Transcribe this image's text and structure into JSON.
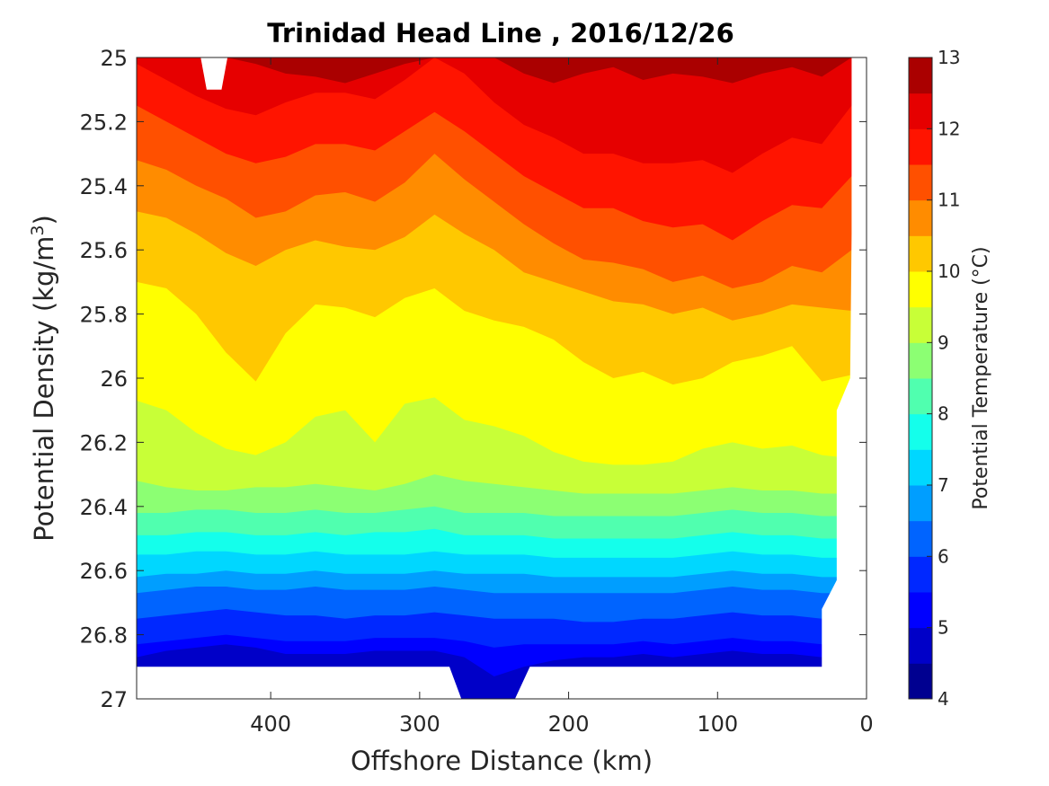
{
  "chart_data": {
    "type": "filled-contour",
    "title": "Trinidad Head Line , 2016/12/26",
    "xlabel": "Offshore Distance (km)",
    "ylabel_main": "Potential Density (kg/m",
    "ylabel_sup": "3",
    "ylabel_end": ")",
    "xlim": [
      490,
      0
    ],
    "x_reversed": true,
    "ylim": [
      25,
      27
    ],
    "y_reversed": true,
    "xticks": [
      400,
      300,
      200,
      100,
      0
    ],
    "xtick_labels": [
      "400",
      "300",
      "200",
      "100",
      "0"
    ],
    "yticks": [
      25,
      25.2,
      25.4,
      25.6,
      25.8,
      26,
      26.2,
      26.4,
      26.6,
      26.8,
      27
    ],
    "ytick_labels": [
      "25",
      "25.2",
      "25.4",
      "25.6",
      "25.8",
      "26",
      "26.2",
      "26.4",
      "26.6",
      "26.8",
      "27"
    ],
    "colorbar": {
      "label": "Potential Temperature (°C)",
      "range": [
        4,
        13
      ],
      "step": 0.5,
      "tick_values": [
        4,
        5,
        6,
        7,
        8,
        9,
        10,
        11,
        12,
        13
      ],
      "tick_labels": [
        "4",
        "5",
        "6",
        "7",
        "8",
        "9",
        "10",
        "11",
        "12",
        "13"
      ],
      "level_colors": [
        "#000090",
        "#0000c8",
        "#0000ff",
        "#0028ff",
        "#0064ff",
        "#009eff",
        "#00d7ff",
        "#14ffeb",
        "#50ffaf",
        "#8cff73",
        "#c8ff37",
        "#ffff00",
        "#ffc800",
        "#ff8c00",
        "#ff5000",
        "#ff1400",
        "#e60000",
        "#aa0000"
      ]
    },
    "stations_x": [
      490,
      470,
      450,
      430,
      410,
      390,
      370,
      350,
      330,
      310,
      290,
      270,
      250,
      230,
      210,
      190,
      170,
      150,
      130,
      110,
      90,
      70,
      50,
      30,
      10
    ],
    "isotherms": [
      {
        "level": 5.0,
        "sigma": [
          26.87,
          26.85,
          26.84,
          26.83,
          26.84,
          26.86,
          26.86,
          26.86,
          26.85,
          26.85,
          26.85,
          26.87,
          26.93,
          26.9,
          26.88,
          26.87,
          26.87,
          26.86,
          26.87,
          26.86,
          26.85,
          26.86,
          26.86,
          26.87,
          26.87
        ]
      },
      {
        "level": 5.5,
        "sigma": [
          26.83,
          26.82,
          26.81,
          26.8,
          26.81,
          26.82,
          26.82,
          26.82,
          26.81,
          26.81,
          26.81,
          26.82,
          26.84,
          26.83,
          26.83,
          26.83,
          26.83,
          26.82,
          26.83,
          26.82,
          26.81,
          26.82,
          26.82,
          26.83,
          26.83
        ]
      },
      {
        "level": 6.0,
        "sigma": [
          26.75,
          26.74,
          26.73,
          26.72,
          26.73,
          26.74,
          26.74,
          26.75,
          26.74,
          26.74,
          26.73,
          26.74,
          26.75,
          26.75,
          26.75,
          26.76,
          26.76,
          26.75,
          26.75,
          26.74,
          26.73,
          26.74,
          26.74,
          26.75,
          26.75
        ]
      },
      {
        "level": 6.5,
        "sigma": [
          26.67,
          26.66,
          26.65,
          26.65,
          26.66,
          26.66,
          26.65,
          26.66,
          26.66,
          26.66,
          26.65,
          26.66,
          26.67,
          26.67,
          26.67,
          26.67,
          26.67,
          26.67,
          26.67,
          26.66,
          26.65,
          26.66,
          26.66,
          26.67,
          26.67
        ]
      },
      {
        "level": 7.0,
        "sigma": [
          26.62,
          26.61,
          26.61,
          26.6,
          26.61,
          26.61,
          26.6,
          26.61,
          26.61,
          26.61,
          26.6,
          26.61,
          26.61,
          26.61,
          26.62,
          26.62,
          26.62,
          26.62,
          26.62,
          26.61,
          26.6,
          26.61,
          26.61,
          26.62,
          26.62
        ]
      },
      {
        "level": 7.5,
        "sigma": [
          26.55,
          26.55,
          26.54,
          26.54,
          26.55,
          26.55,
          26.54,
          26.55,
          26.55,
          26.55,
          26.54,
          26.55,
          26.55,
          26.55,
          26.56,
          26.56,
          26.56,
          26.56,
          26.56,
          26.55,
          26.54,
          26.55,
          26.55,
          26.56,
          26.56
        ]
      },
      {
        "level": 8.0,
        "sigma": [
          26.49,
          26.49,
          26.48,
          26.48,
          26.49,
          26.49,
          26.48,
          26.49,
          26.48,
          26.48,
          26.47,
          26.49,
          26.49,
          26.49,
          26.5,
          26.5,
          26.5,
          26.5,
          26.5,
          26.49,
          26.48,
          26.49,
          26.49,
          26.5,
          26.5
        ]
      },
      {
        "level": 8.5,
        "sigma": [
          26.42,
          26.42,
          26.41,
          26.41,
          26.42,
          26.42,
          26.41,
          26.42,
          26.42,
          26.41,
          26.4,
          26.42,
          26.42,
          26.42,
          26.43,
          26.43,
          26.43,
          26.43,
          26.43,
          26.42,
          26.41,
          26.42,
          26.42,
          26.43,
          26.43
        ]
      },
      {
        "level": 9.0,
        "sigma": [
          26.32,
          26.34,
          26.35,
          26.35,
          26.34,
          26.34,
          26.33,
          26.34,
          26.35,
          26.33,
          26.3,
          26.32,
          26.33,
          26.34,
          26.35,
          26.36,
          26.36,
          26.36,
          26.36,
          26.35,
          26.34,
          26.35,
          26.35,
          26.36,
          26.36
        ]
      },
      {
        "level": 9.5,
        "sigma": [
          26.07,
          26.1,
          26.17,
          26.22,
          26.24,
          26.2,
          26.12,
          26.1,
          26.2,
          26.08,
          26.06,
          26.13,
          26.15,
          26.18,
          26.23,
          26.26,
          26.27,
          26.27,
          26.26,
          26.22,
          26.2,
          26.22,
          26.21,
          26.24,
          26.25
        ]
      },
      {
        "level": 10.0,
        "sigma": [
          25.7,
          25.72,
          25.8,
          25.92,
          26.01,
          25.86,
          25.77,
          25.78,
          25.81,
          25.75,
          25.72,
          25.79,
          25.82,
          25.84,
          25.88,
          25.95,
          26.0,
          25.98,
          26.02,
          26.0,
          25.95,
          25.93,
          25.9,
          26.01,
          25.99
        ]
      },
      {
        "level": 10.5,
        "sigma": [
          25.48,
          25.5,
          25.55,
          25.61,
          25.65,
          25.6,
          25.57,
          25.59,
          25.6,
          25.56,
          25.49,
          25.55,
          25.6,
          25.67,
          25.7,
          25.73,
          25.76,
          25.77,
          25.8,
          25.78,
          25.82,
          25.8,
          25.77,
          25.78,
          25.79
        ]
      },
      {
        "level": 11.0,
        "sigma": [
          25.32,
          25.35,
          25.4,
          25.44,
          25.5,
          25.48,
          25.43,
          25.42,
          25.45,
          25.39,
          25.3,
          25.38,
          25.45,
          25.52,
          25.58,
          25.63,
          25.64,
          25.66,
          25.7,
          25.68,
          25.72,
          25.7,
          25.65,
          25.67,
          25.6
        ]
      },
      {
        "level": 11.5,
        "sigma": [
          25.15,
          25.2,
          25.25,
          25.3,
          25.33,
          25.31,
          25.27,
          25.27,
          25.29,
          25.23,
          25.17,
          25.23,
          25.3,
          25.37,
          25.42,
          25.47,
          25.47,
          25.51,
          25.53,
          25.52,
          25.57,
          25.51,
          25.46,
          25.47,
          25.37
        ]
      },
      {
        "level": 12.0,
        "sigma": [
          25.02,
          25.07,
          25.12,
          25.16,
          25.18,
          25.14,
          25.11,
          25.11,
          25.13,
          25.07,
          25.0,
          25.05,
          25.14,
          25.21,
          25.25,
          25.3,
          25.3,
          25.33,
          25.33,
          25.32,
          25.36,
          25.3,
          25.25,
          25.27,
          25.15
        ]
      },
      {
        "level": 12.5,
        "sigma": [
          25.0,
          25.0,
          25.0,
          25.0,
          25.02,
          25.05,
          25.06,
          25.08,
          25.05,
          25.02,
          25.0,
          25.0,
          25.0,
          25.05,
          25.08,
          25.05,
          25.03,
          25.07,
          25.05,
          25.06,
          25.08,
          25.05,
          25.03,
          25.06,
          25.0
        ]
      }
    ],
    "data_mask": [
      {
        "name": "missing-top-notch",
        "points": [
          [
            447,
            25.0
          ],
          [
            429,
            25.0
          ],
          [
            433,
            25.1
          ],
          [
            443,
            25.1
          ]
        ]
      },
      {
        "name": "no-data-bottom",
        "points": [
          [
            490,
            26.9
          ],
          [
            490,
            27.0
          ],
          [
            272,
            27.0
          ],
          [
            280,
            26.9
          ]
        ]
      },
      {
        "name": "no-data-bottom-2",
        "points": [
          [
            226,
            26.9
          ],
          [
            236,
            27.0
          ],
          [
            0,
            27.0
          ],
          [
            0,
            25.0
          ],
          [
            10,
            25.0
          ],
          [
            10,
            25.55
          ],
          [
            11,
            26.0
          ],
          [
            20,
            26.1
          ],
          [
            20,
            26.63
          ],
          [
            30,
            26.72
          ],
          [
            30,
            26.9
          ]
        ]
      }
    ]
  }
}
